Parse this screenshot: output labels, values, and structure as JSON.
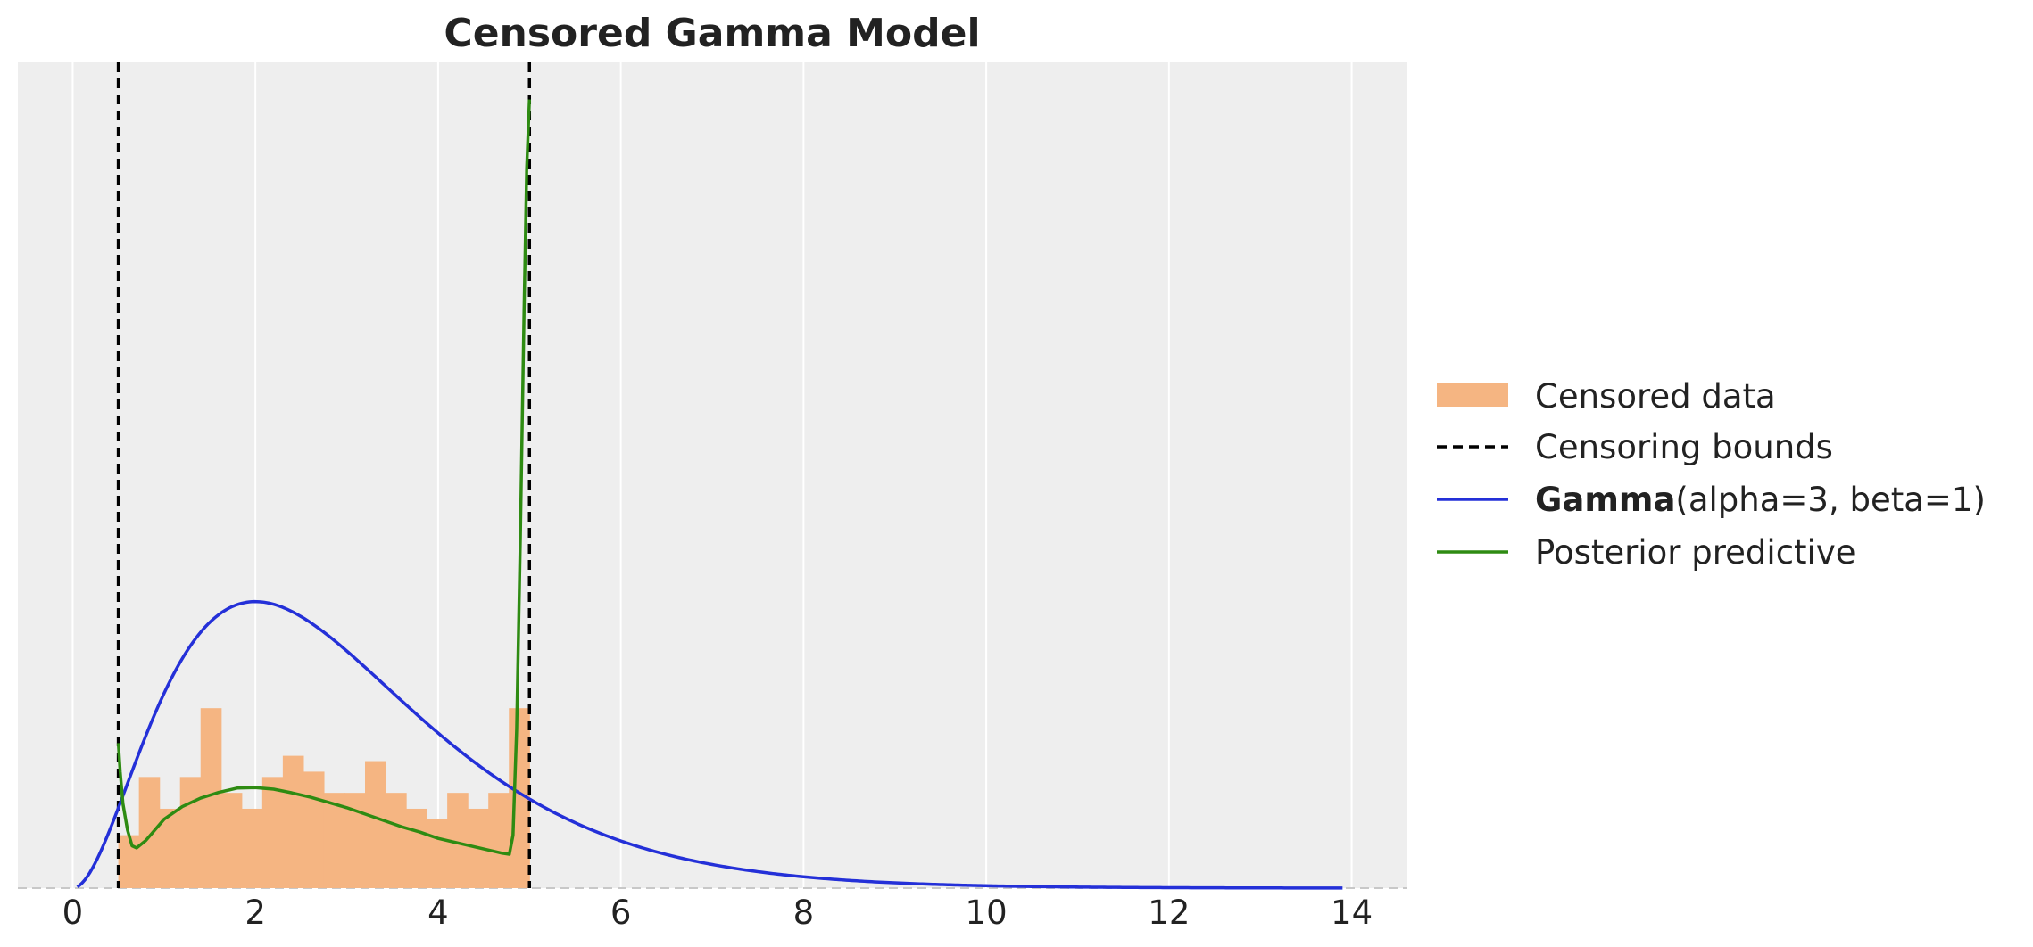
{
  "chart_data": {
    "type": "histogram+line",
    "title": "Censored Gamma Model",
    "xlabel": "",
    "ylabel": "",
    "xlim": [
      -0.6,
      14.6
    ],
    "ylim": [
      0,
      0.78
    ],
    "xticks": [
      0,
      2,
      4,
      6,
      8,
      10,
      12,
      14
    ],
    "grid": "vertical",
    "y_tick_labels_shown": false,
    "legend_placement": "right",
    "colors": {
      "plot_background": "#eeeeee",
      "histogram": "#f5b582",
      "censoring_bounds": "#000000",
      "gamma": "#2430d8",
      "posterior": "#2e8b12",
      "grid": "#ffffff"
    },
    "censoring_bounds": [
      0.5,
      5.0
    ],
    "histogram": {
      "name": "Censored data",
      "bin_width": 0.225,
      "bin_edges_start": 0.5,
      "heights": [
        0.05,
        0.105,
        0.075,
        0.105,
        0.17,
        0.09,
        0.075,
        0.105,
        0.125,
        0.11,
        0.09,
        0.09,
        0.12,
        0.09,
        0.075,
        0.065,
        0.09,
        0.075,
        0.09,
        0.17
      ]
    },
    "series": [
      {
        "name_bold": "Gamma",
        "name_rest": "(alpha=3, beta=1)",
        "shape": 3,
        "rate": 1,
        "x_range": [
          0.05,
          13.9
        ]
      },
      {
        "name": "Posterior predictive",
        "x": [
          0.5,
          0.52,
          0.55,
          0.6,
          0.65,
          0.7,
          0.8,
          0.9,
          1.0,
          1.2,
          1.4,
          1.6,
          1.8,
          2.0,
          2.2,
          2.4,
          2.6,
          2.8,
          3.0,
          3.2,
          3.4,
          3.6,
          3.8,
          4.0,
          4.2,
          4.4,
          4.6,
          4.7,
          4.78,
          4.82,
          4.86,
          4.9,
          4.94,
          4.97,
          5.0
        ],
        "y": [
          0.137,
          0.11,
          0.08,
          0.055,
          0.04,
          0.038,
          0.045,
          0.055,
          0.065,
          0.077,
          0.085,
          0.0905,
          0.0945,
          0.095,
          0.0935,
          0.09,
          0.086,
          0.081,
          0.076,
          0.07,
          0.064,
          0.058,
          0.053,
          0.047,
          0.043,
          0.039,
          0.035,
          0.033,
          0.032,
          0.05,
          0.15,
          0.33,
          0.54,
          0.68,
          0.745
        ]
      }
    ],
    "legend": [
      {
        "key": "censored",
        "label": "Censored data"
      },
      {
        "key": "bounds",
        "label": "Censoring bounds"
      },
      {
        "key": "gamma",
        "label_bold": "Gamma",
        "label_rest": "(alpha=3, beta=1)"
      },
      {
        "key": "posterior",
        "label": "Posterior predictive"
      }
    ]
  }
}
